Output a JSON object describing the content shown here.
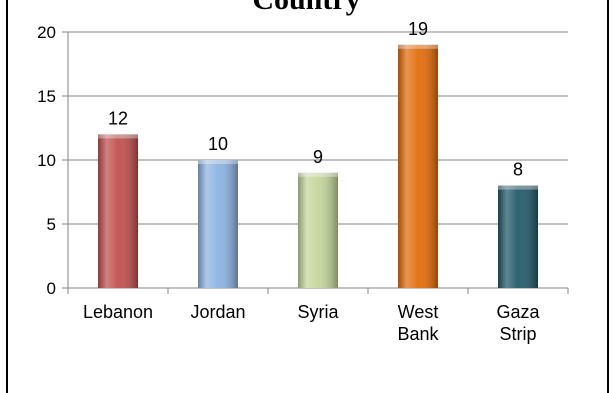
{
  "chart_data": {
    "type": "bar",
    "title": "Country",
    "categories": [
      [
        "Lebanon"
      ],
      [
        "Jordan"
      ],
      [
        "Syria"
      ],
      [
        "West",
        "Bank"
      ],
      [
        "Gaza",
        "Strip"
      ]
    ],
    "values": [
      12,
      10,
      9,
      19,
      8
    ],
    "data_labels": [
      "12",
      "10",
      "9",
      "19",
      "8"
    ],
    "bar_colors": [
      "#c0504d",
      "#8db3e2",
      "#c3d69b",
      "#e46c0a",
      "#215968"
    ],
    "ylim": [
      0,
      20
    ],
    "yticks": [
      0,
      5,
      10,
      15,
      20
    ],
    "ytick_labels": [
      "0",
      "5",
      "10",
      "15",
      "20"
    ],
    "grid": true,
    "legend": "none"
  }
}
